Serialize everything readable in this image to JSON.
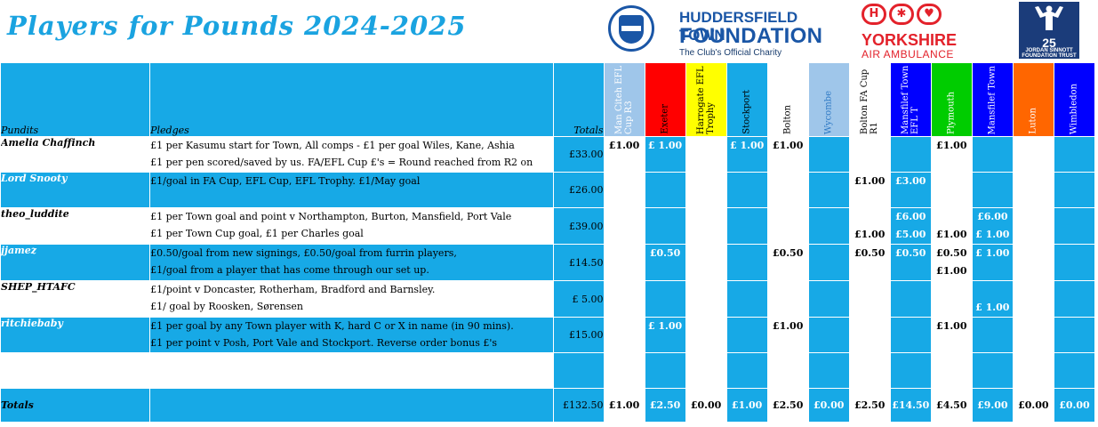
{
  "title": "Players for Pounds 2024-2025",
  "logos": {
    "htf": {
      "line1": "HUDDERSFIELD TOWN",
      "line2": "FOUNDATION",
      "line3": "The Club's Official Charity"
    },
    "yaa": {
      "line1": "YORKSHIRE",
      "line2": "AIR AMBULANCE"
    },
    "js": {
      "number": "25",
      "line1": "JORDAN SINNOTT",
      "line2": "FOUNDATION TRUST"
    }
  },
  "headers": {
    "pundits": "Pundits",
    "pledges": "Pledges",
    "totals": "Totals"
  },
  "matches": [
    {
      "label": "Man Citeh EFL Cup R3",
      "color": "#9fc6ea"
    },
    {
      "label": "Exeter",
      "color": "#ff0000"
    },
    {
      "label": "Harrogate EFL Trophy",
      "color": "#ffff00"
    },
    {
      "label": "Stockport",
      "color": "#17a9e6"
    },
    {
      "label": "Bolton",
      "color": "#ffffff"
    },
    {
      "label": "Wycombe",
      "color": "#9fc6ea"
    },
    {
      "label": "Bolton FA Cup R1",
      "color": "#ffffff"
    },
    {
      "label": "Mansfilef Town EFL T",
      "color": "#0000ff"
    },
    {
      "label": "Plymouth",
      "color": "#00cc00"
    },
    {
      "label": "Mansfilef Town",
      "color": "#0000ff"
    },
    {
      "label": "Luton",
      "color": "#ff6600"
    },
    {
      "label": "Wimbledon",
      "color": "#0000ff"
    }
  ],
  "rows": [
    {
      "name": "Amelia Chaffinch",
      "pledge1": "£1 per Kasumu start for Town, All comps - £1 per goal Wiles, Kane, Ashia",
      "pledge2": "£1 per pen scored/saved by us. FA/EFL Cup £'s = Round reached from R2 on",
      "total": "£33.00",
      "cells": [
        [
          "£1.00"
        ],
        [
          "£ 1.00"
        ],
        [],
        [
          "£ 1.00"
        ],
        [
          "£1.00"
        ],
        [],
        [],
        [],
        [
          "£1.00"
        ],
        [],
        [],
        []
      ]
    },
    {
      "name": "Lord Snooty",
      "pledge1": "£1/goal in FA Cup, EFL Cup, EFL Trophy. £1/May goal",
      "pledge2": "",
      "total": "£26.00",
      "cells": [
        [],
        [],
        [],
        [],
        [],
        [],
        [
          "£1.00"
        ],
        [
          "£3.00"
        ],
        [],
        [],
        [],
        []
      ]
    },
    {
      "name": "theo_luddite",
      "pledge1": "£1 per Town goal and point v Northampton, Burton, Mansfield, Port Vale",
      "pledge2": "£1 per Town Cup goal, £1 per Charles goal",
      "total": "£39.00",
      "cells": [
        [],
        [],
        [],
        [],
        [],
        [],
        [
          "",
          "£1.00"
        ],
        [
          "£6.00",
          "£5.00"
        ],
        [
          "",
          "£1.00"
        ],
        [
          "£6.00",
          "£ 1.00"
        ],
        [],
        []
      ]
    },
    {
      "name": "jjamez",
      "pledge1": "£0.50/goal from new signings, £0.50/goal from furrin players,",
      "pledge2": "£1/goal from a player that has come through our set up.",
      "total": "£14.50",
      "cells": [
        [],
        [
          "£0.50"
        ],
        [],
        [],
        [
          "£0.50"
        ],
        [],
        [
          "£0.50"
        ],
        [
          "£0.50"
        ],
        [
          "£0.50",
          "£1.00"
        ],
        [
          "£ 1.00"
        ],
        [],
        []
      ]
    },
    {
      "name": "SHEP_HTAFC",
      "pledge1": "£1/point v Doncaster, Rotherham, Bradford and Barnsley.",
      "pledge2": "£1/ goal by Roosken, Sørensen",
      "total": "£   5.00",
      "cells": [
        [],
        [],
        [],
        [],
        [],
        [],
        [],
        [],
        [],
        [
          "",
          "£ 1.00"
        ],
        [],
        []
      ]
    },
    {
      "name": "ritchiebaby",
      "pledge1": "£1 per goal by any Town player with K, hard C or X in name (in 90 mins).",
      "pledge2": "£1 per point v Posh, Port Vale and Stockport. Reverse order bonus £'s",
      "total": "£15.00",
      "cells": [
        [],
        [
          "£ 1.00"
        ],
        [],
        [],
        [
          "£1.00"
        ],
        [],
        [],
        [],
        [
          "£1.00"
        ],
        [],
        [],
        []
      ]
    }
  ],
  "totals_row": {
    "label": "Totals",
    "grand": "£132.50",
    "values": [
      "£1.00",
      "£2.50",
      "£0.00",
      "£1.00",
      "£2.50",
      "£0.00",
      "£2.50",
      "£14.50",
      "£4.50",
      "£9.00",
      "£0.00",
      "£0.00"
    ]
  }
}
